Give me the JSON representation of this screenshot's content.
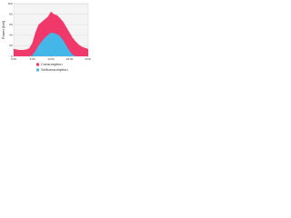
{
  "chart_data": {
    "type": "area",
    "ylabel": "Power [kW]",
    "x": [
      0,
      1,
      2,
      3,
      4,
      5,
      6,
      7,
      8,
      9,
      10,
      11,
      12,
      13,
      14,
      15,
      16,
      17,
      18,
      19,
      20,
      21,
      22,
      23,
      24
    ],
    "series": [
      {
        "name": "Consumption",
        "color": "#f0386b",
        "values": [
          14,
          13,
          12,
          12,
          13,
          15,
          25,
          45,
          60,
          65,
          70,
          75,
          85,
          80,
          78,
          72,
          65,
          55,
          45,
          35,
          28,
          22,
          18,
          16,
          14
        ]
      },
      {
        "name": "Selfconsumption",
        "color": "#45b6e8",
        "values": [
          0,
          0,
          0,
          0,
          0,
          0,
          2,
          10,
          20,
          28,
          35,
          40,
          45,
          44,
          42,
          38,
          30,
          20,
          10,
          3,
          0,
          0,
          0,
          0,
          0
        ]
      }
    ],
    "xlim": [
      0,
      24
    ],
    "xticks": [
      {
        "value": 0,
        "label": "0:00"
      },
      {
        "value": 6,
        "label": "6:00"
      },
      {
        "value": 12,
        "label": "12:00"
      },
      {
        "value": 18,
        "label": "18:00"
      },
      {
        "value": 24,
        "label": "24:00"
      }
    ],
    "ylim": [
      0,
      100
    ],
    "yticks": [
      0,
      20,
      40,
      60,
      80,
      100
    ],
    "grid": true
  }
}
